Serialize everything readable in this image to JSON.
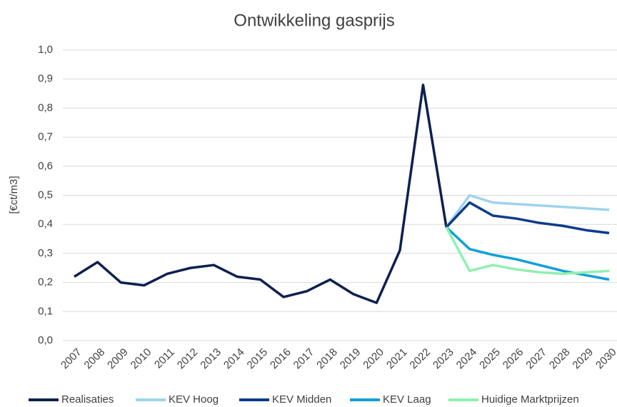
{
  "chart_data": {
    "type": "line",
    "title": "Ontwikkeling gasprijs",
    "y_label": "[€ct/m3]",
    "categories": [
      "2007",
      "2008",
      "2009",
      "2010",
      "2011",
      "2012",
      "2013",
      "2014",
      "2015",
      "2016",
      "2017",
      "2018",
      "2019",
      "2020",
      "2021",
      "2022",
      "2023",
      "2024",
      "2025",
      "2026",
      "2027",
      "2028",
      "2029",
      "2030"
    ],
    "series": [
      {
        "name": "Realisaties",
        "color": "#0e2050",
        "values": [
          0.22,
          0.27,
          0.2,
          0.19,
          0.23,
          0.25,
          0.26,
          0.22,
          0.21,
          0.15,
          0.17,
          0.21,
          0.16,
          0.13,
          0.31,
          0.88,
          0.39,
          null,
          null,
          null,
          null,
          null,
          null,
          null
        ]
      },
      {
        "name": "KEV Hoog",
        "color": "#9dd3ed",
        "values": [
          null,
          null,
          null,
          null,
          null,
          null,
          null,
          null,
          null,
          null,
          null,
          null,
          null,
          null,
          null,
          null,
          0.39,
          0.5,
          0.475,
          0.47,
          0.465,
          0.46,
          0.455,
          0.45
        ]
      },
      {
        "name": "KEV Midden",
        "color": "#0d3b8c",
        "values": [
          null,
          null,
          null,
          null,
          null,
          null,
          null,
          null,
          null,
          null,
          null,
          null,
          null,
          null,
          null,
          null,
          0.39,
          0.475,
          0.43,
          0.42,
          0.405,
          0.395,
          0.38,
          0.37
        ]
      },
      {
        "name": "KEV Laag",
        "color": "#0ea0d8",
        "values": [
          null,
          null,
          null,
          null,
          null,
          null,
          null,
          null,
          null,
          null,
          null,
          null,
          null,
          null,
          null,
          null,
          0.39,
          0.315,
          0.295,
          0.28,
          0.26,
          0.24,
          0.225,
          0.21
        ]
      },
      {
        "name": "Huidige Marktprijzen",
        "color": "#8ff0b0",
        "values": [
          null,
          null,
          null,
          null,
          null,
          null,
          null,
          null,
          null,
          null,
          null,
          null,
          null,
          null,
          null,
          null,
          0.39,
          0.24,
          0.26,
          0.245,
          0.235,
          0.23,
          0.235,
          0.24
        ]
      }
    ],
    "ylim": [
      0,
      1
    ],
    "yticks": [
      {
        "value": 0,
        "label": "0,0"
      },
      {
        "value": 0.1,
        "label": "0,1"
      },
      {
        "value": 0.2,
        "label": "0,2"
      },
      {
        "value": 0.3,
        "label": "0,3"
      },
      {
        "value": 0.4,
        "label": "0,4"
      },
      {
        "value": 0.5,
        "label": "0,5"
      },
      {
        "value": 0.6,
        "label": "0,6"
      },
      {
        "value": 0.7,
        "label": "0,7"
      },
      {
        "value": 0.8,
        "label": "0,8"
      },
      {
        "value": 0.9,
        "label": "0,9"
      },
      {
        "value": 1,
        "label": "1,0"
      }
    ],
    "grid": true,
    "legend": "bottom"
  }
}
